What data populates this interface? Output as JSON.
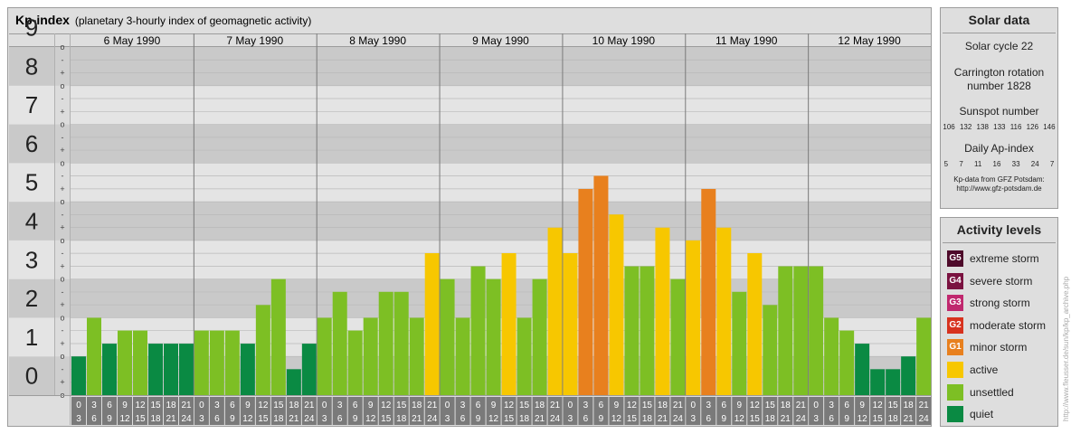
{
  "header": {
    "title": "Kp-index",
    "subtitle": "(planetary 3-hourly index of geomagnetic activity)"
  },
  "colors": {
    "quiet": "#0a8a43",
    "unsettled": "#7dbf24",
    "active": "#f7c700",
    "minor_storm": "#e8801e",
    "moderate_storm": "#d7321e",
    "strong_storm": "#c0286e",
    "severe_storm": "#7a1240",
    "extreme_storm": "#4e0a2a"
  },
  "chart_data": {
    "type": "bar",
    "title": "Kp-index",
    "ylim": [
      0,
      9
    ],
    "y_tick_labels": [
      "0",
      "1",
      "2",
      "3",
      "4",
      "5",
      "6",
      "7",
      "8",
      "9"
    ],
    "minor_tick_marks": [
      "-",
      "o",
      "+"
    ],
    "days": [
      "6 May 1990",
      "7 May 1990",
      "8 May 1990",
      "9 May 1990",
      "10 May 1990",
      "11 May 1990",
      "12 May 1990"
    ],
    "interval_starts": [
      "0",
      "3",
      "6",
      "9",
      "12",
      "15",
      "18",
      "21"
    ],
    "interval_ends": [
      "3",
      "6",
      "9",
      "12",
      "15",
      "18",
      "21",
      "24"
    ],
    "values": [
      [
        1.0,
        2.0,
        1.33,
        1.67,
        1.67,
        1.33,
        1.33,
        1.33
      ],
      [
        1.67,
        1.67,
        1.67,
        1.33,
        2.33,
        3.0,
        0.67,
        1.33
      ],
      [
        2.0,
        2.67,
        1.67,
        2.0,
        2.67,
        2.67,
        2.0,
        3.67
      ],
      [
        3.0,
        2.0,
        3.33,
        3.0,
        3.67,
        2.0,
        3.0,
        4.33
      ],
      [
        3.67,
        5.33,
        5.67,
        4.67,
        3.33,
        3.33,
        4.33,
        3.0
      ],
      [
        4.0,
        5.33,
        4.33,
        2.67,
        3.67,
        2.33,
        3.33,
        3.33
      ],
      [
        3.33,
        2.0,
        1.67,
        1.33,
        0.67,
        0.67,
        1.0,
        2.0
      ]
    ]
  },
  "solar": {
    "title": "Solar data",
    "cycle": "Solar cycle 22",
    "carrington_line1": "Carrington rotation",
    "carrington_line2": "number 1828",
    "sunspot_title": "Sunspot number",
    "sunspot_values": "106 132 138 133 116 126 146",
    "ap_title": "Daily Ap-index",
    "ap_values": "5 7 11 16 33 24 7",
    "source_line1": "Kp-data from GFZ Potsdam:",
    "source_line2": "http://www.gfz-potsdam.de"
  },
  "activity": {
    "title": "Activity levels",
    "levels": [
      {
        "badge": "G5",
        "label": "extreme storm",
        "color": "#4e0a2a"
      },
      {
        "badge": "G4",
        "label": "severe storm",
        "color": "#7a1240"
      },
      {
        "badge": "G3",
        "label": "strong storm",
        "color": "#c0286e"
      },
      {
        "badge": "G2",
        "label": "moderate storm",
        "color": "#d7321e"
      },
      {
        "badge": "G1",
        "label": "minor storm",
        "color": "#e8801e"
      },
      {
        "badge": "",
        "label": "active",
        "color": "#f7c700"
      },
      {
        "badge": "",
        "label": "unsettled",
        "color": "#7dbf24"
      },
      {
        "badge": "",
        "label": "quiet",
        "color": "#0a8a43"
      }
    ]
  },
  "credit": "http://www.fleusser.de/sun/kp/kp_archive.php"
}
